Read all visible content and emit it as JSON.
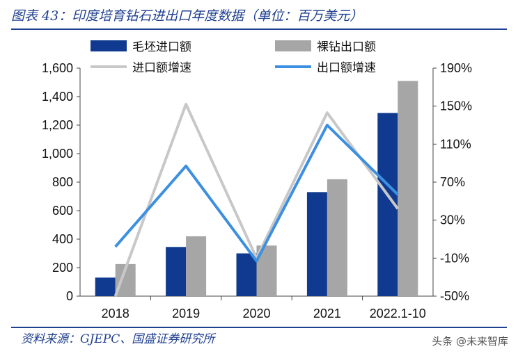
{
  "title": "图表 43：印度培育钻石进出口年度数据（单位：百万美元）",
  "source": "资料来源：GJEPC、国盛证券研究所",
  "watermark": "头条 @未来智库",
  "chart_data": {
    "type": "bar",
    "categories": [
      "2018",
      "2019",
      "2020",
      "2021",
      "2022.1-10"
    ],
    "series": [
      {
        "name": "毛坯进口额",
        "type": "bar",
        "axis": "left",
        "color": "#0f3a8f",
        "values": [
          130,
          345,
          300,
          730,
          1285
        ]
      },
      {
        "name": "裸钻出口额",
        "type": "bar",
        "axis": "left",
        "color": "#a6a6a6",
        "values": [
          225,
          420,
          355,
          820,
          1510
        ]
      },
      {
        "name": "进口额增速",
        "type": "line",
        "axis": "right",
        "color": "#c8c8c8",
        "values": [
          -0.5,
          1.52,
          -0.1,
          1.43,
          0.42
        ]
      },
      {
        "name": "出口额增速",
        "type": "line",
        "axis": "right",
        "color": "#3d8fe0",
        "values": [
          0.02,
          0.87,
          -0.13,
          1.3,
          0.57
        ]
      }
    ],
    "left_axis": {
      "min": 0,
      "max": 1600,
      "ticks": [
        "0",
        "200",
        "400",
        "600",
        "800",
        "1,000",
        "1,200",
        "1,400",
        "1,600"
      ]
    },
    "right_axis": {
      "min": -0.5,
      "max": 1.9,
      "ticks": [
        "-50%",
        "-10%",
        "30%",
        "70%",
        "110%",
        "150%",
        "190%"
      ]
    },
    "legend_position": "top",
    "grid": false
  }
}
